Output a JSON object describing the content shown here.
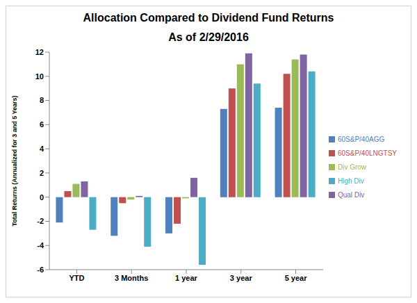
{
  "chart_data": {
    "type": "bar",
    "title": "Allocation Compared to Dividend Fund Returns",
    "subtitle": "As of 2/29/2016",
    "y_label": "Total Returns (Annualized for 3 and 5 Years)",
    "categories": [
      "YTD",
      "3 Months",
      "1 year",
      "3 year",
      "5 year"
    ],
    "series": [
      {
        "name": "60S&P/40AGG",
        "color": "#4f81bd",
        "values": [
          -2.1,
          -3.2,
          -3.0,
          7.3,
          7.4
        ]
      },
      {
        "name": "60S&P/40LNGTSY",
        "color": "#c0504d",
        "values": [
          0.5,
          -0.5,
          -2.2,
          9.0,
          10.2
        ]
      },
      {
        "name": "Div Grow",
        "color": "#9bbb59",
        "values": [
          1.1,
          -0.2,
          -0.1,
          11.0,
          11.4
        ]
      },
      {
        "name": "Qual Div",
        "color": "#8064a2",
        "values": [
          1.3,
          0.1,
          1.6,
          11.9,
          11.8
        ]
      },
      {
        "name": "High Div",
        "color": "#4bacc6",
        "values": [
          -2.7,
          -4.1,
          -5.6,
          9.4,
          10.4
        ]
      }
    ],
    "ylim": [
      -6,
      12
    ],
    "yticks": [
      -6,
      -4,
      -2,
      0,
      2,
      4,
      6,
      8,
      10,
      12
    ],
    "grid": false,
    "legend": "right"
  }
}
